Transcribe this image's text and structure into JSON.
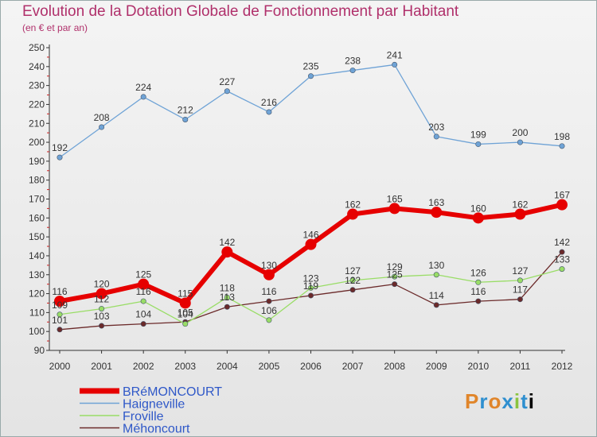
{
  "header": {
    "title": "Evolution de la Dotation Globale de Fonctionnement par Habitant",
    "subtitle": "(en € et par an)"
  },
  "chart_data": {
    "type": "line",
    "title": "Evolution de la Dotation Globale de Fonctionnement par Habitant",
    "subtitle": "(en € et par an)",
    "xlabel": "",
    "ylabel": "",
    "x": [
      "2000",
      "2001",
      "2002",
      "2003",
      "2004",
      "2005",
      "2006",
      "2007",
      "2008",
      "2009",
      "2010",
      "2011",
      "2012"
    ],
    "ylim": [
      90,
      250
    ],
    "yticks": [
      90,
      100,
      110,
      120,
      130,
      140,
      150,
      160,
      170,
      180,
      190,
      200,
      210,
      220,
      230,
      240,
      250
    ],
    "grid": false,
    "legend_position": "bottom-left",
    "series": [
      {
        "name": "BRéMONCOURT",
        "color": "#e60000",
        "values": [
          116,
          120,
          125,
          115,
          142,
          130,
          146,
          162,
          165,
          163,
          160,
          162,
          167
        ]
      },
      {
        "name": "Haigneville",
        "color": "#6fa3d6",
        "values": [
          192,
          208,
          224,
          212,
          227,
          216,
          235,
          238,
          241,
          203,
          199,
          200,
          198
        ]
      },
      {
        "name": "Froville",
        "color": "#99dd66",
        "values": [
          109,
          112,
          116,
          104,
          118,
          106,
          123,
          127,
          129,
          130,
          126,
          127,
          133
        ]
      },
      {
        "name": "Méhoncourt",
        "color": "#6b2a2a",
        "values": [
          101,
          103,
          104,
          105,
          113,
          116,
          119,
          122,
          125,
          114,
          116,
          117,
          142
        ]
      }
    ]
  },
  "logo": {
    "letters": [
      "P",
      "r",
      "o",
      "x",
      "i",
      "t",
      "i"
    ]
  }
}
